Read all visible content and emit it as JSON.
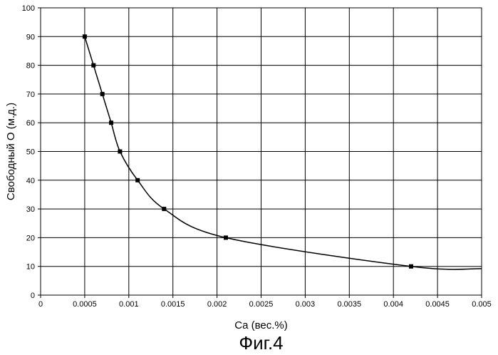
{
  "chart_data": {
    "type": "line",
    "title": "",
    "xlabel": "Ca (вес.%)",
    "ylabel": "Свободный O (м.д.)",
    "caption": "Фиг.4",
    "xlim": [
      0,
      0.005
    ],
    "ylim": [
      0,
      100
    ],
    "x_ticks": [
      0,
      0.0005,
      0.001,
      0.0015,
      0.002,
      0.0025,
      0.003,
      0.0035,
      0.004,
      0.0045,
      0.005
    ],
    "x_tick_labels": [
      "0",
      "0.0005",
      "0.001",
      "0.0015",
      "0.002",
      "0.0025",
      "0.003",
      "0.0035",
      "0.004",
      "0.0045",
      "0.005"
    ],
    "y_ticks": [
      0,
      10,
      20,
      30,
      40,
      50,
      60,
      70,
      80,
      90,
      100
    ],
    "y_tick_labels": [
      "0",
      "10",
      "20",
      "30",
      "40",
      "50",
      "60",
      "70",
      "80",
      "90",
      "100"
    ],
    "grid": true,
    "legend": "none",
    "series": [
      {
        "x": [
          0.0005,
          0.0006,
          0.0007,
          0.0008,
          0.0009,
          0.0011,
          0.0014,
          0.0021,
          0.0042
        ],
        "y": [
          90,
          80,
          70,
          60,
          50,
          40,
          30,
          20,
          10
        ],
        "marker": "square",
        "color": "#000000"
      }
    ],
    "curve_tail": {
      "x": [
        0.0042,
        0.005
      ],
      "y": [
        10,
        9.2
      ]
    }
  }
}
